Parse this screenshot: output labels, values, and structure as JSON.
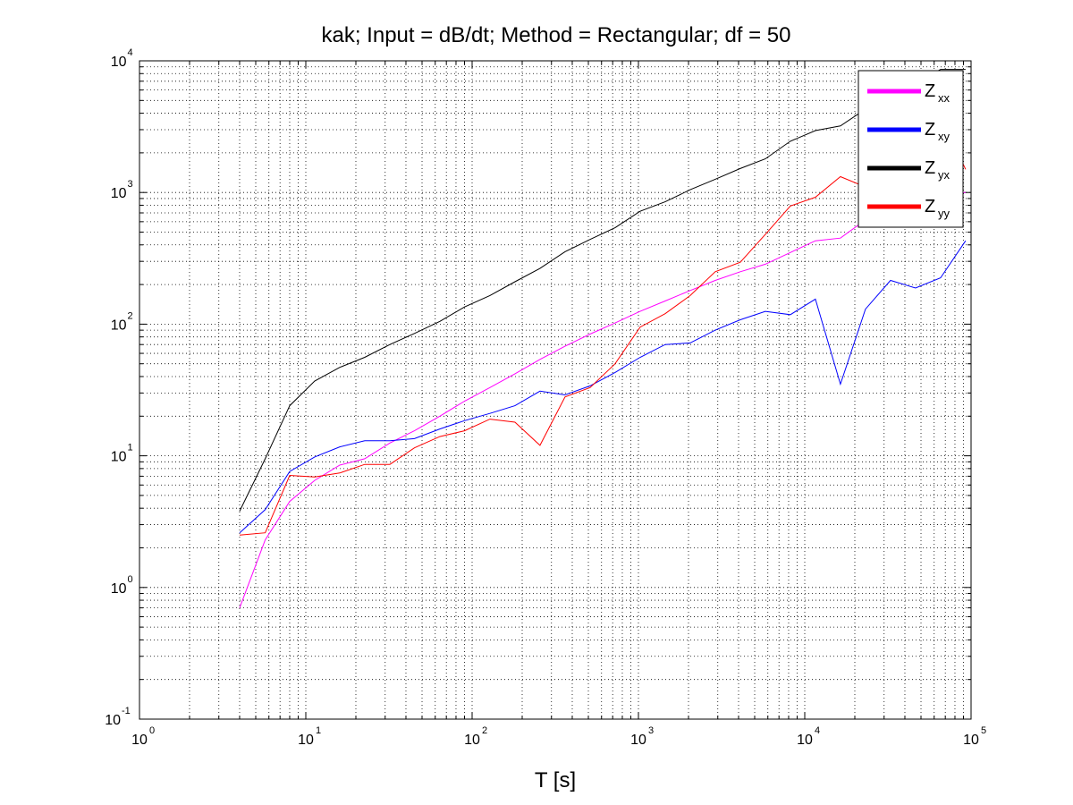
{
  "chart_data": {
    "type": "line",
    "title": "kak; Input = dB/dt; Method = Rectangular; df = 50",
    "xlabel": "T [s]",
    "ylabel": "",
    "xscale": "log",
    "yscale": "log",
    "xlim": [
      1,
      100000
    ],
    "ylim": [
      0.1,
      10000
    ],
    "grid": true,
    "legend_position": "top-right",
    "x_ticks": [
      {
        "base": "10",
        "exp": "0"
      },
      {
        "base": "10",
        "exp": "1"
      },
      {
        "base": "10",
        "exp": "2"
      },
      {
        "base": "10",
        "exp": "3"
      },
      {
        "base": "10",
        "exp": "4"
      },
      {
        "base": "10",
        "exp": "5"
      }
    ],
    "y_ticks": [
      {
        "base": "10",
        "exp": "-1"
      },
      {
        "base": "10",
        "exp": "0"
      },
      {
        "base": "10",
        "exp": "1"
      },
      {
        "base": "10",
        "exp": "2"
      },
      {
        "base": "10",
        "exp": "3"
      },
      {
        "base": "10",
        "exp": "4"
      }
    ],
    "x": [
      4,
      5.7,
      8,
      11.3,
      16,
      22.6,
      32,
      45,
      64,
      90,
      128,
      181,
      256,
      362,
      512,
      724,
      1024,
      1448,
      2048,
      2896,
      4096,
      5793,
      8192,
      11585,
      16384,
      23170,
      32768,
      46341,
      65536,
      92682
    ],
    "series": [
      {
        "name": "Z",
        "sub": "xx",
        "color": "#ff00ff",
        "values": [
          0.7,
          2.3,
          4.5,
          6.5,
          8.5,
          9.5,
          12.5,
          15.5,
          20,
          26,
          33,
          42,
          54,
          68,
          84,
          102,
          125,
          150,
          180,
          215,
          250,
          285,
          350,
          430,
          450,
          620,
          750,
          720,
          1000,
          1000
        ]
      },
      {
        "name": "Z",
        "sub": "xy",
        "color": "#0000ff",
        "values": [
          2.6,
          3.9,
          7.6,
          9.8,
          11.7,
          13,
          13,
          13.5,
          16,
          18.5,
          21,
          24,
          31,
          29,
          34,
          43,
          56,
          70,
          72,
          90,
          108,
          125,
          118,
          155,
          35,
          130,
          215,
          188,
          225,
          430
        ]
      },
      {
        "name": "Z",
        "sub": "yx",
        "color": "#000000",
        "values": [
          3.8,
          9.5,
          24,
          37,
          47,
          56,
          70,
          85,
          105,
          135,
          165,
          210,
          265,
          355,
          440,
          540,
          720,
          850,
          1050,
          1260,
          1520,
          1800,
          2450,
          2950,
          3200,
          4300,
          5300,
          6800,
          8600,
          8600
        ]
      },
      {
        "name": "Z",
        "sub": "yy",
        "color": "#ff0000",
        "values": [
          2.5,
          2.6,
          7.1,
          6.9,
          7.4,
          8.6,
          8.6,
          11.5,
          14,
          15.5,
          19,
          18,
          12,
          28,
          33,
          50,
          95,
          120,
          165,
          250,
          295,
          480,
          790,
          920,
          1320,
          1100,
          740,
          1350,
          3800,
          1500
        ]
      }
    ]
  }
}
